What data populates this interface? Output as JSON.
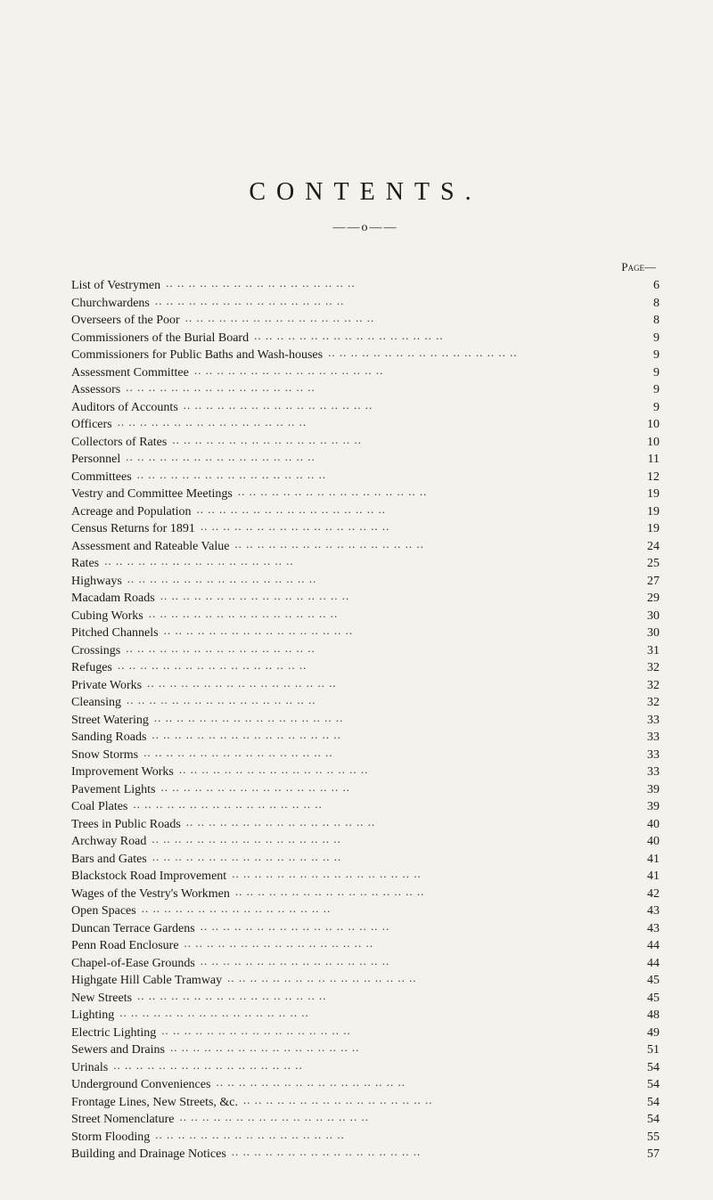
{
  "title": "CONTENTS.",
  "divider": "——o——",
  "page_heading": "Page—",
  "background_color": "#f4f2ed",
  "text_color": "#1a1a1a",
  "font_family": "Times New Roman",
  "title_fontsize": 28,
  "title_letter_spacing": 12,
  "body_fontsize": 14,
  "line_height": 1.25,
  "entries": [
    {
      "label": "List of Vestrymen",
      "page": 6
    },
    {
      "label": "Churchwardens",
      "page": 8
    },
    {
      "label": "Overseers of the Poor",
      "page": 8
    },
    {
      "label": "Commissioners of the Burial Board",
      "page": 9
    },
    {
      "label": "Commissioners for Public Baths and Wash-houses",
      "page": 9
    },
    {
      "label": "Assessment Committee",
      "page": 9
    },
    {
      "label": "Assessors",
      "page": 9
    },
    {
      "label": "Auditors of Accounts",
      "page": 9
    },
    {
      "label": "Officers",
      "page": 10
    },
    {
      "label": "Collectors of Rates",
      "page": 10
    },
    {
      "label": "Personnel",
      "page": 11
    },
    {
      "label": "Committees",
      "page": 12
    },
    {
      "label": "Vestry and Committee Meetings",
      "page": 19
    },
    {
      "label": "Acreage and Population",
      "page": 19
    },
    {
      "label": "Census Returns for 1891",
      "page": 19
    },
    {
      "label": "Assessment and Rateable Value",
      "page": 24
    },
    {
      "label": "Rates",
      "page": 25
    },
    {
      "label": "Highways",
      "page": 27
    },
    {
      "label": "Macadam Roads",
      "page": 29
    },
    {
      "label": "Cubing Works",
      "page": 30
    },
    {
      "label": "Pitched Channels",
      "page": 30
    },
    {
      "label": "Crossings",
      "page": 31
    },
    {
      "label": "Refuges",
      "page": 32
    },
    {
      "label": "Private Works",
      "page": 32
    },
    {
      "label": "Cleansing",
      "page": 32
    },
    {
      "label": "Street Watering",
      "page": 33
    },
    {
      "label": "Sanding Roads",
      "page": 33
    },
    {
      "label": "Snow Storms",
      "page": 33
    },
    {
      "label": "Improvement Works",
      "page": 33
    },
    {
      "label": "Pavement Lights",
      "page": 39
    },
    {
      "label": "Coal Plates",
      "page": 39
    },
    {
      "label": "Trees in Public Roads",
      "page": 40
    },
    {
      "label": "Archway Road",
      "page": 40
    },
    {
      "label": "Bars and Gates",
      "page": 41
    },
    {
      "label": "Blackstock Road Improvement",
      "page": 41
    },
    {
      "label": "Wages of the Vestry's Workmen",
      "page": 42
    },
    {
      "label": "Open Spaces",
      "page": 43
    },
    {
      "label": "Duncan Terrace Gardens",
      "page": 43
    },
    {
      "label": "Penn Road Enclosure",
      "page": 44
    },
    {
      "label": "Chapel-of-Ease Grounds",
      "page": 44
    },
    {
      "label": "Highgate Hill Cable Tramway",
      "page": 45
    },
    {
      "label": "New Streets",
      "page": 45
    },
    {
      "label": "Lighting",
      "page": 48
    },
    {
      "label": "Electric Lighting",
      "page": 49
    },
    {
      "label": "Sewers and Drains",
      "page": 51
    },
    {
      "label": "Urinals",
      "page": 54
    },
    {
      "label": "Underground Conveniences",
      "page": 54
    },
    {
      "label": "Frontage Lines, New Streets, &c.",
      "page": 54
    },
    {
      "label": "Street Nomenclature",
      "page": 54
    },
    {
      "label": "Storm Flooding",
      "page": 55
    },
    {
      "label": "Building and Drainage Notices",
      "page": 57
    }
  ]
}
